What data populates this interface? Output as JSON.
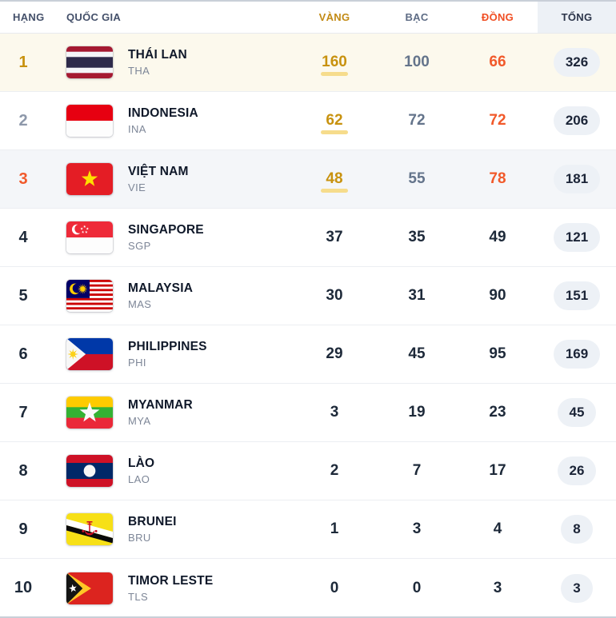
{
  "colors": {
    "gold_accent": "#C8920F",
    "silver_accent": "#64748B",
    "bronze_accent": "#F1592A",
    "dark_text": "#1D2939",
    "row_first_bg": "#FCF9ED",
    "row_third_bg": "#F4F6F9",
    "total_header_bg": "#EDF1F6",
    "total_pill_bg": "#EDF1F6",
    "gold_underline": "#F6DC8C"
  },
  "table": {
    "columns": {
      "rank": "HẠNG",
      "country": "QUỐC GIA",
      "gold": "VÀNG",
      "silver": "BẠC",
      "bronze": "ĐỒNG",
      "total": "TỔNG"
    },
    "rows": [
      {
        "rank": "1",
        "name": "THÁI LAN",
        "code": "THA",
        "flag": "thailand",
        "gold": "160",
        "silver": "100",
        "bronze": "66",
        "total": "326"
      },
      {
        "rank": "2",
        "name": "INDONESIA",
        "code": "INA",
        "flag": "indonesia",
        "gold": "62",
        "silver": "72",
        "bronze": "72",
        "total": "206"
      },
      {
        "rank": "3",
        "name": "VIỆT NAM",
        "code": "VIE",
        "flag": "vietnam",
        "gold": "48",
        "silver": "55",
        "bronze": "78",
        "total": "181"
      },
      {
        "rank": "4",
        "name": "SINGAPORE",
        "code": "SGP",
        "flag": "singapore",
        "gold": "37",
        "silver": "35",
        "bronze": "49",
        "total": "121"
      },
      {
        "rank": "5",
        "name": "MALAYSIA",
        "code": "MAS",
        "flag": "malaysia",
        "gold": "30",
        "silver": "31",
        "bronze": "90",
        "total": "151"
      },
      {
        "rank": "6",
        "name": "PHILIPPINES",
        "code": "PHI",
        "flag": "philippines",
        "gold": "29",
        "silver": "45",
        "bronze": "95",
        "total": "169"
      },
      {
        "rank": "7",
        "name": "MYANMAR",
        "code": "MYA",
        "flag": "myanmar",
        "gold": "3",
        "silver": "19",
        "bronze": "23",
        "total": "45"
      },
      {
        "rank": "8",
        "name": "LÀO",
        "code": "LAO",
        "flag": "laos",
        "gold": "2",
        "silver": "7",
        "bronze": "17",
        "total": "26"
      },
      {
        "rank": "9",
        "name": "BRUNEI",
        "code": "BRU",
        "flag": "brunei",
        "gold": "1",
        "silver": "3",
        "bronze": "4",
        "total": "8"
      },
      {
        "rank": "10",
        "name": "TIMOR LESTE",
        "code": "TLS",
        "flag": "timor-leste",
        "gold": "0",
        "silver": "0",
        "bronze": "3",
        "total": "3"
      }
    ]
  }
}
